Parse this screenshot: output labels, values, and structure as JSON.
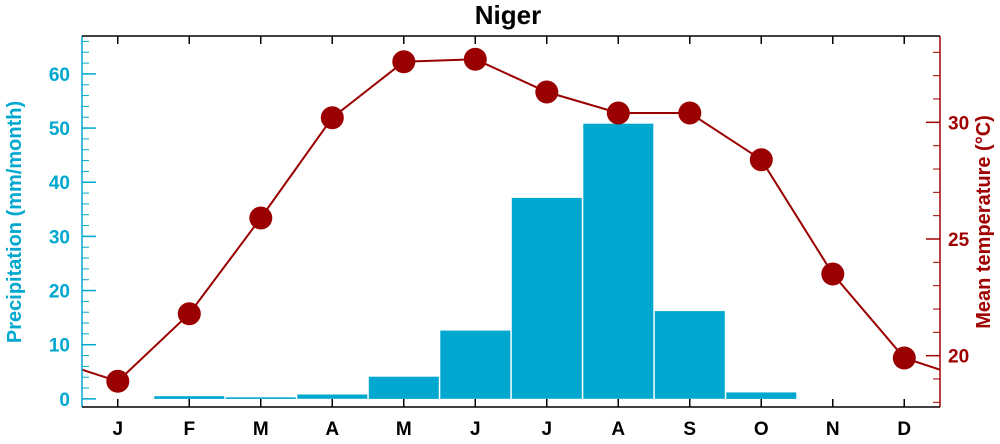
{
  "chart_data": {
    "type": "bar+line",
    "title": "Niger",
    "categories": [
      "J",
      "F",
      "M",
      "A",
      "M",
      "J",
      "J",
      "A",
      "S",
      "O",
      "N",
      "D"
    ],
    "series": [
      {
        "type": "bar",
        "axis": "left",
        "values": [
          0,
          0.5,
          0.3,
          0.8,
          4.1,
          12.6,
          37.1,
          50.8,
          16.2,
          1.2,
          0,
          0
        ],
        "color": "#00a8d0"
      },
      {
        "type": "line",
        "axis": "right",
        "values": [
          18.9,
          21.8,
          25.9,
          30.2,
          32.6,
          32.7,
          31.3,
          30.4,
          30.4,
          28.4,
          23.5,
          19.9
        ],
        "color": "#9b0000",
        "line_start": 19.4,
        "line_end": 19.4
      }
    ],
    "y_left": {
      "label": "Precipitation (mm/month)",
      "ticks": [
        0,
        10,
        20,
        30,
        40,
        50,
        60
      ],
      "range": [
        -1.5,
        67
      ],
      "color": "#00a8d0"
    },
    "y_right": {
      "label": "Mean temperature (°C)",
      "ticks": [
        20,
        25,
        30
      ],
      "range": [
        17.8,
        33.7
      ],
      "color": "#a00000"
    },
    "grid": false,
    "legend": "none"
  }
}
